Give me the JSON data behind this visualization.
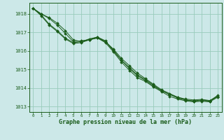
{
  "title": "Graphe pression niveau de la mer (hPa)",
  "background_color": "#cce8e8",
  "grid_color": "#99ccbb",
  "line_color": "#1a5c1a",
  "xlim": [
    -0.5,
    23.5
  ],
  "ylim": [
    1012.7,
    1018.6
  ],
  "yticks": [
    1013,
    1014,
    1015,
    1016,
    1017,
    1018
  ],
  "xticks": [
    0,
    1,
    2,
    3,
    4,
    5,
    6,
    7,
    8,
    9,
    10,
    11,
    12,
    13,
    14,
    15,
    16,
    17,
    18,
    19,
    20,
    21,
    22,
    23
  ],
  "series": [
    [
      1018.3,
      1018.0,
      1017.8,
      1017.5,
      1017.1,
      1016.6,
      1016.5,
      1016.6,
      1016.75,
      1016.5,
      1016.1,
      1015.6,
      1015.2,
      1014.8,
      1014.5,
      1014.2,
      1013.9,
      1013.7,
      1013.5,
      1013.35,
      1013.3,
      1013.35,
      1013.3,
      1013.6
    ],
    [
      1018.3,
      1018.0,
      1017.75,
      1017.4,
      1016.95,
      1016.5,
      1016.55,
      1016.6,
      1016.7,
      1016.5,
      1016.05,
      1015.5,
      1015.1,
      1014.7,
      1014.45,
      1014.15,
      1013.85,
      1013.65,
      1013.5,
      1013.4,
      1013.35,
      1013.38,
      1013.32,
      1013.55
    ],
    [
      1018.3,
      1017.95,
      1017.45,
      1017.1,
      1016.7,
      1016.45,
      1016.5,
      1016.65,
      1016.75,
      1016.55,
      1016.0,
      1015.5,
      1015.05,
      1014.65,
      1014.4,
      1014.1,
      1013.85,
      1013.65,
      1013.45,
      1013.35,
      1013.28,
      1013.32,
      1013.28,
      1013.55
    ],
    [
      1018.3,
      1017.9,
      1017.4,
      1017.05,
      1016.65,
      1016.4,
      1016.45,
      1016.6,
      1016.7,
      1016.45,
      1015.95,
      1015.4,
      1014.95,
      1014.55,
      1014.35,
      1014.05,
      1013.8,
      1013.55,
      1013.4,
      1013.3,
      1013.25,
      1013.28,
      1013.25,
      1013.5
    ]
  ],
  "title_fontsize": 6,
  "xlabel_fontsize": 5.5,
  "ylabel_fontsize": 5.5
}
